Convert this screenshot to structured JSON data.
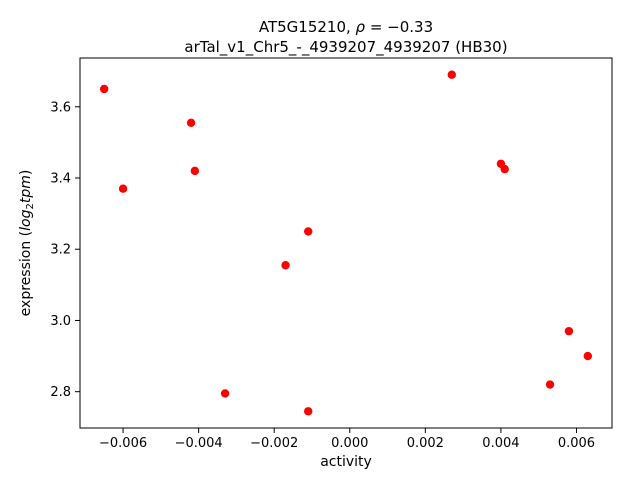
{
  "figure": {
    "background": "#ffffff",
    "axes_edge_color": "#000000"
  },
  "title": {
    "line1_prefix": "AT5G15210, ",
    "line1_rho": "ρ",
    "line1_rest": " = −0.33",
    "line2": "arTal_v1_Chr5_-_4939207_4939207 (HB30)"
  },
  "chart_data": {
    "type": "scatter",
    "title": "AT5G15210, ρ = −0.33",
    "subtitle": "arTal_v1_Chr5_-_4939207_4939207 (HB30)",
    "xlabel": "activity",
    "ylabel": "expression (log₂tpm)",
    "ylabel_parts": {
      "prefix": "expression (",
      "math_main": "log",
      "math_sub": "2",
      "math_tail": "tpm",
      "suffix": ")"
    },
    "marker_color": "#ff0000",
    "grid": false,
    "legend": "none",
    "xlim": [
      -0.00714,
      0.00694
    ],
    "ylim": [
      2.698,
      3.737
    ],
    "x_ticks": [
      -0.006,
      -0.004,
      -0.002,
      0.0,
      0.002,
      0.004,
      0.006
    ],
    "x_tick_labels": [
      "−0.006",
      "−0.004",
      "−0.002",
      "0.000",
      "0.002",
      "0.004",
      "0.006"
    ],
    "y_ticks": [
      2.8,
      3.0,
      3.2,
      3.4,
      3.6
    ],
    "y_tick_labels": [
      "2.8",
      "3.0",
      "3.2",
      "3.4",
      "3.6"
    ],
    "points": [
      {
        "x": -0.0065,
        "y": 3.65
      },
      {
        "x": -0.006,
        "y": 3.37
      },
      {
        "x": -0.0042,
        "y": 3.555
      },
      {
        "x": -0.0041,
        "y": 3.42
      },
      {
        "x": -0.0033,
        "y": 2.795
      },
      {
        "x": -0.0017,
        "y": 3.155
      },
      {
        "x": -0.0011,
        "y": 3.25
      },
      {
        "x": -0.0011,
        "y": 2.745
      },
      {
        "x": 0.0027,
        "y": 3.69
      },
      {
        "x": 0.004,
        "y": 3.44
      },
      {
        "x": 0.0041,
        "y": 3.425
      },
      {
        "x": 0.0053,
        "y": 2.82
      },
      {
        "x": 0.0058,
        "y": 2.97
      },
      {
        "x": 0.0063,
        "y": 2.9
      }
    ]
  }
}
